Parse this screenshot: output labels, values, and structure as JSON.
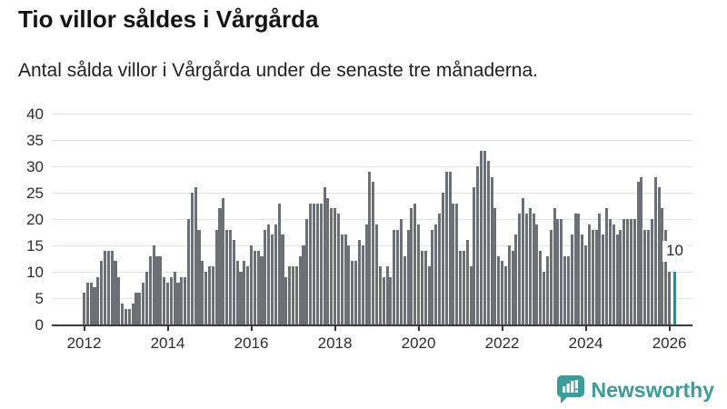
{
  "header": {
    "title": "Tio villor såldes i Vårgårda",
    "subtitle": "Antal sålda villor i Vårgårda under de senaste tre månaderna."
  },
  "chart_data": {
    "type": "bar",
    "title": "Tio villor såldes i Vårgårda",
    "subtitle": "Antal sålda villor i Vårgårda under de senaste tre månaderna.",
    "x_start": "2012-01",
    "x_interval": "month",
    "x_tick_years": [
      2012,
      2014,
      2016,
      2018,
      2020,
      2022,
      2024,
      2026
    ],
    "y_ticks": [
      0,
      5,
      10,
      15,
      20,
      25,
      30,
      35,
      40
    ],
    "ylim": [
      0,
      40
    ],
    "grid": "horizontal",
    "legend": "none",
    "bar_color": "#6c6f75",
    "highlight_color": "#00a0a0",
    "highlight_index": 169,
    "highlight_label": "10",
    "values": [
      6,
      8,
      8,
      7,
      9,
      12,
      14,
      14,
      14,
      12,
      9,
      4,
      3,
      3,
      4,
      6,
      6,
      8,
      10,
      13,
      15,
      13,
      13,
      9,
      8,
      9,
      10,
      8,
      9,
      9,
      20,
      25,
      26,
      18,
      12,
      10,
      11,
      11,
      18,
      22,
      24,
      18,
      18,
      16,
      12,
      10,
      12,
      11,
      15,
      14,
      14,
      13,
      18,
      19,
      17,
      19,
      23,
      17,
      9,
      11,
      11,
      11,
      13,
      15,
      20,
      23,
      23,
      23,
      23,
      26,
      24,
      22,
      22,
      21,
      17,
      17,
      15,
      12,
      12,
      16,
      15,
      19,
      29,
      27,
      19,
      11,
      9,
      11,
      9,
      18,
      18,
      20,
      13,
      18,
      22,
      23,
      19,
      14,
      14,
      11,
      18,
      19,
      21,
      25,
      29,
      29,
      23,
      23,
      14,
      14,
      16,
      11,
      26,
      30,
      33,
      33,
      31,
      28,
      22,
      13,
      12,
      11,
      15,
      14,
      17,
      21,
      24,
      21,
      22,
      21,
      19,
      14,
      10,
      13,
      18,
      22,
      20,
      20,
      13,
      13,
      17,
      21,
      21,
      17,
      15,
      19,
      18,
      18,
      21,
      17,
      22,
      20,
      19,
      17,
      18,
      20,
      20,
      20,
      20,
      27,
      28,
      18,
      18,
      20,
      28,
      26,
      22,
      18,
      10,
      10
    ]
  },
  "annotation": {
    "value_label": "10"
  },
  "brand": {
    "name": "Newsworthy",
    "color": "#3b9c99"
  }
}
